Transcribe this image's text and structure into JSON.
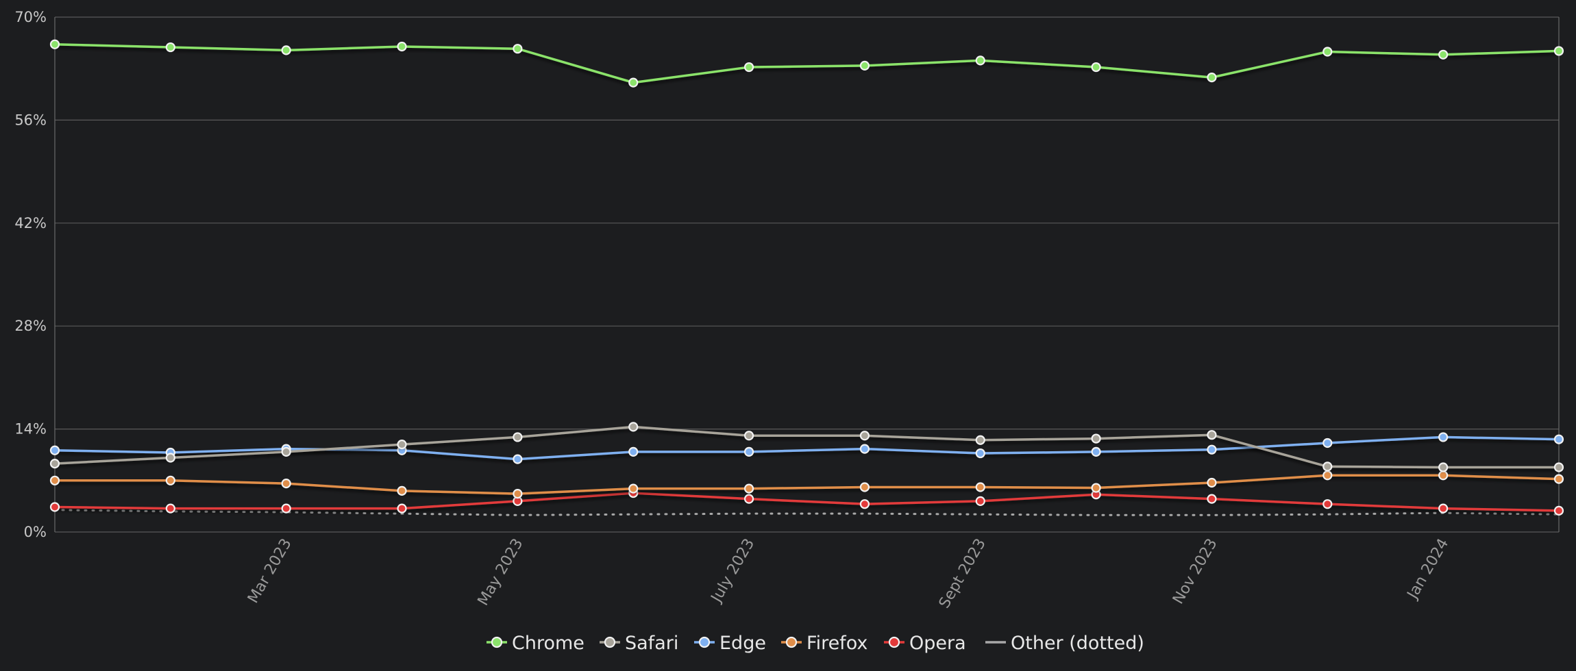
{
  "chart_data": {
    "type": "line",
    "x": [
      "2023-01",
      "2023-02",
      "2023-03",
      "2023-04",
      "2023-05",
      "2023-06",
      "2023-07",
      "2023-08",
      "2023-09",
      "2023-10",
      "2023-11",
      "2023-12",
      "2024-01",
      "2024-02"
    ],
    "x_tick_labels": [
      {
        "x": "2023-03",
        "label": "Mar 2023"
      },
      {
        "x": "2023-05",
        "label": "May 2023"
      },
      {
        "x": "2023-07",
        "label": "July 2023"
      },
      {
        "x": "2023-09",
        "label": "Sept 2023"
      },
      {
        "x": "2023-11",
        "label": "Nov 2023"
      },
      {
        "x": "2024-01",
        "label": "Jan 2024"
      }
    ],
    "ylim": [
      0,
      70
    ],
    "y_ticks": [
      0,
      14,
      28,
      42,
      56,
      70
    ],
    "y_tick_labels": [
      "0%",
      "14%",
      "28%",
      "42%",
      "56%",
      "70%"
    ],
    "grid": true,
    "legend_position": "bottom-center",
    "series": [
      {
        "name": "Chrome",
        "color": "#8be36b",
        "marker": true,
        "values": [
          66.3,
          65.9,
          65.5,
          66.0,
          65.7,
          61.1,
          63.2,
          63.4,
          64.1,
          63.2,
          61.8,
          65.3,
          64.9,
          65.4
        ]
      },
      {
        "name": "Safari",
        "color": "#a8a49a",
        "marker": true,
        "values": [
          9.3,
          10.1,
          10.9,
          11.9,
          12.9,
          14.3,
          13.1,
          13.1,
          12.5,
          12.7,
          13.2,
          8.9,
          8.8,
          8.8
        ]
      },
      {
        "name": "Edge",
        "color": "#7fb0f0",
        "marker": true,
        "values": [
          11.1,
          10.8,
          11.3,
          11.1,
          9.9,
          10.9,
          10.9,
          11.3,
          10.7,
          10.9,
          11.2,
          12.1,
          12.9,
          12.6
        ]
      },
      {
        "name": "Firefox",
        "color": "#e08e4a",
        "marker": true,
        "values": [
          7.0,
          7.0,
          6.6,
          5.6,
          5.2,
          5.9,
          5.9,
          6.1,
          6.1,
          6.0,
          6.7,
          7.7,
          7.7,
          7.2
        ]
      },
      {
        "name": "Opera",
        "color": "#e23a3a",
        "marker": true,
        "values": [
          3.4,
          3.2,
          3.2,
          3.2,
          4.2,
          5.3,
          4.5,
          3.8,
          4.2,
          5.1,
          4.5,
          3.8,
          3.2,
          2.9
        ]
      },
      {
        "name": "Other (dotted)",
        "color": "#a8a8a8",
        "marker": false,
        "dotted": true,
        "values": [
          3.0,
          2.8,
          2.7,
          2.5,
          2.3,
          2.4,
          2.5,
          2.5,
          2.4,
          2.3,
          2.3,
          2.4,
          2.6,
          2.4
        ]
      }
    ]
  }
}
